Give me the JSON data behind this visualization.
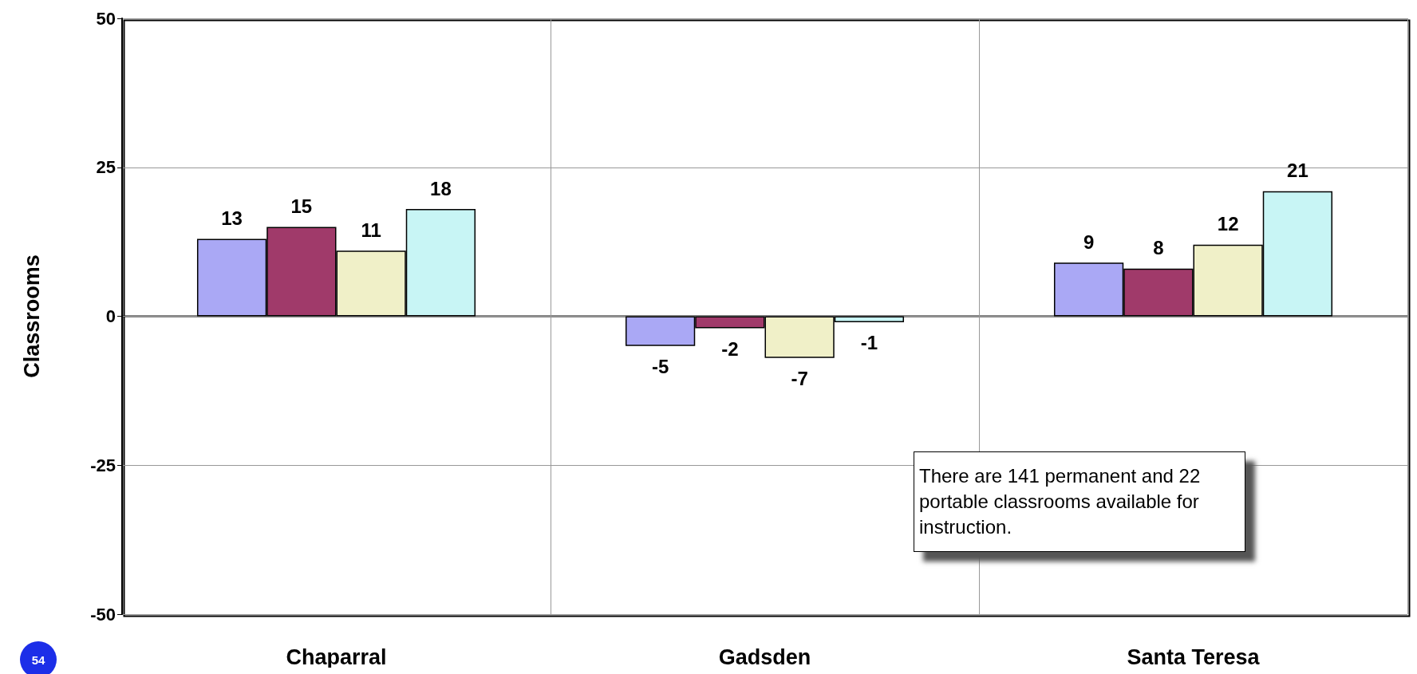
{
  "chart_data": {
    "type": "bar",
    "ylabel": "Classrooms",
    "categories": [
      "Chaparral",
      "Gadsden",
      "Santa Teresa"
    ],
    "series": [
      {
        "color": "#aaa8f5",
        "values": [
          13,
          -5,
          9
        ]
      },
      {
        "color": "#a03a6a",
        "values": [
          15,
          -2,
          8
        ]
      },
      {
        "color": "#f0f0c8",
        "values": [
          11,
          -7,
          12
        ]
      },
      {
        "color": "#c8f5f5",
        "values": [
          18,
          -1,
          21
        ]
      }
    ],
    "ylim": [
      -50,
      50
    ],
    "yticks": [
      -50,
      -25,
      0,
      25,
      50
    ],
    "grid": true,
    "data_labels": true,
    "annotations": [
      "There are 141 permanent and 22 portable classrooms available for instruction.",
      "54"
    ]
  }
}
